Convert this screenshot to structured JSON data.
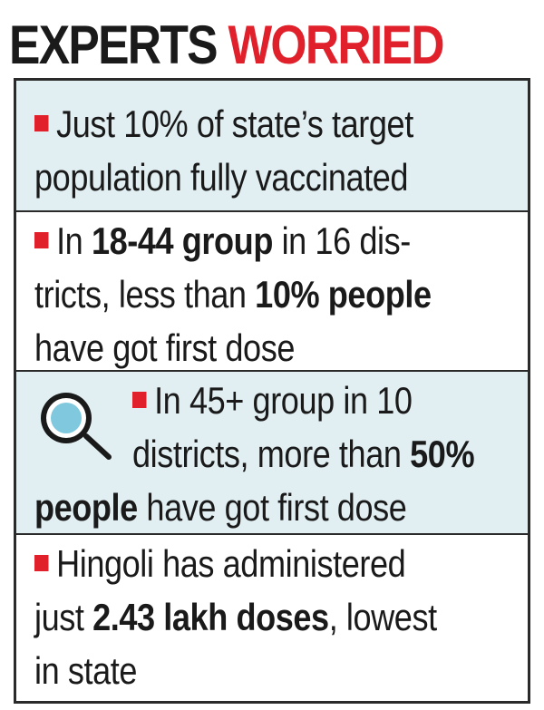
{
  "header": {
    "title_part1": "EXPERTS",
    "title_part2": "WORRIED",
    "colors": {
      "dark": "#1a1a1a",
      "red": "#e0202a",
      "shade": "#e1eff3"
    }
  },
  "items": [
    {
      "line1": "Just 10% of state’s target",
      "line2": "population fully vaccinated"
    },
    {
      "line1_pre": "In ",
      "line1_bold": "18-44 group",
      "line1_post": " in 16 dis-",
      "line2_pre": "tricts, less than ",
      "line2_bold": "10% people",
      "line3": "have got first dose"
    },
    {
      "icon": "magnifier-icon",
      "line1": "In 45+ group in 10",
      "line2_pre": "districts, more than ",
      "line2_bold": "50%",
      "line3_bold": "people",
      "line3_post": " have got first dose"
    },
    {
      "line1": "Hingoli has administered",
      "line2_pre": "just ",
      "line2_bold": "2.43 lakh doses",
      "line2_post": ", lowest",
      "line3": "in state"
    }
  ]
}
